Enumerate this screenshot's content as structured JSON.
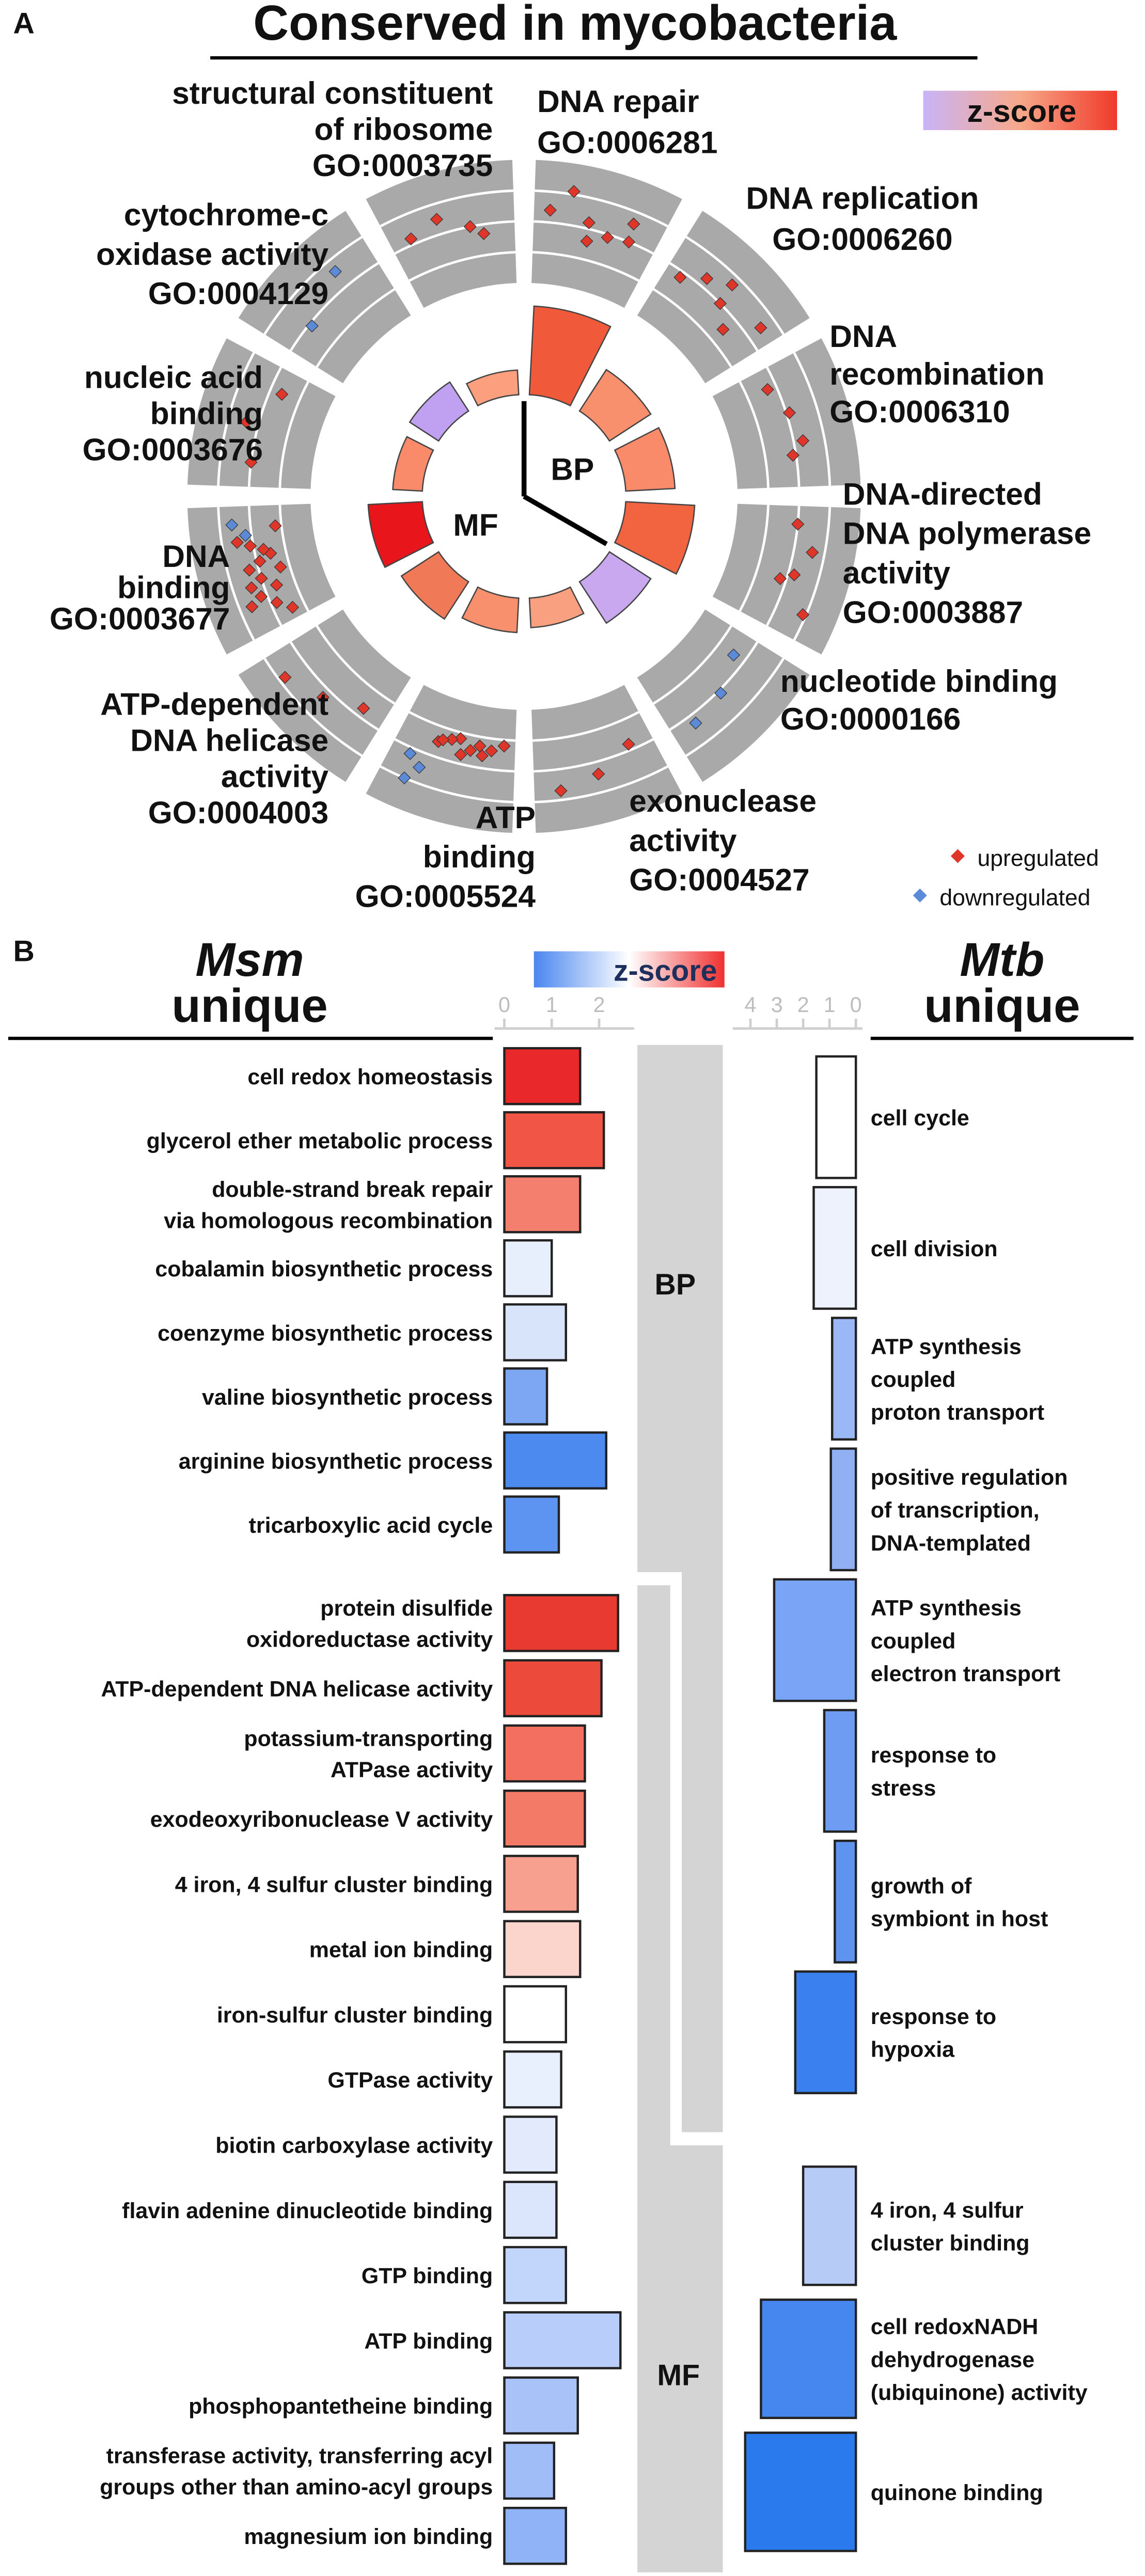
{
  "chart_data": [
    {
      "type": "radial",
      "panel": "A",
      "title": "Conserved in mycobacteria",
      "legend_title": "z-score",
      "colorscale": [
        "#c9b4f8",
        "#f7a88a",
        "#f03a2a"
      ],
      "categories": [
        [
          "DNA repair",
          "GO:0006281"
        ],
        [
          "DNA replication",
          "GO:0006260"
        ],
        [
          "DNA",
          "recombination",
          "GO:0006310"
        ],
        [
          "DNA-directed",
          "DNA polymerase",
          "activity",
          "GO:0003887"
        ],
        [
          "nucleotide binding",
          "GO:0000166"
        ],
        [
          "exonuclease",
          "activity",
          "GO:0004527"
        ],
        [
          "ATP",
          "binding",
          "GO:0005524"
        ],
        [
          "ATP-dependent",
          "DNA helicase",
          "activity",
          "GO:0004003"
        ],
        [
          "DNA",
          "binding",
          "GO:0003677"
        ],
        [
          "nucleic acid",
          "binding",
          "GO:0003676"
        ],
        [
          "cytochrome-c",
          "oxidase activity",
          "GO:0004129"
        ],
        [
          "structural constituent",
          "of ribosome",
          "GO:0003735"
        ]
      ],
      "ontology": [
        "BP",
        "BP",
        "BP",
        "BP",
        "MF",
        "MF",
        "MF",
        "MF",
        "MF",
        "MF",
        "MF",
        "MF"
      ],
      "values": [
        9,
        5,
        5,
        7,
        5,
        3,
        3.5,
        4.5,
        5.5,
        3,
        3.5,
        2.5
      ],
      "ylim": [
        0,
        10
      ],
      "colors": [
        "#f05a3a",
        "#f9906d",
        "#f98a6a",
        "#f26340",
        "#c9a8f0",
        "#f8a080",
        "#f9906d",
        "#f07a58",
        "#e8161b",
        "#f98a6a",
        "#c0a0f0",
        "#fb9f7e"
      ],
      "rlim": [
        0,
        4
      ],
      "points": [
        {
          "up": [
            2.4,
            3.1,
            2.2,
            1.6,
            1.9,
            2.6,
            2.0
          ],
          "down": []
        },
        {
          "up": [
            1.8,
            2.3,
            2.7,
            2.0,
            1.5,
            2.5
          ],
          "down": []
        },
        {
          "up": [
            1.7,
            2.1,
            2.3,
            1.9
          ],
          "down": []
        },
        {
          "up": [
            2.0,
            2.6,
            2.2,
            1.8,
            2.9
          ],
          "down": []
        },
        {
          "up": [],
          "down": [
            1.6,
            2.1,
            2.3
          ]
        },
        {
          "up": [
            1.8,
            2.4,
            2.7
          ],
          "down": []
        },
        {
          "up": [
            1.2,
            1.4,
            1.3,
            1.6,
            1.5,
            1.2,
            1.7,
            1.3,
            1.5,
            1.4
          ],
          "down": [
            2.5,
            2.2,
            3.0
          ]
        },
        {
          "up": [
            1.7,
            2.3,
            2.8
          ],
          "down": []
        },
        {
          "up": [
            1.4,
            1.8,
            2.2,
            2.6,
            1.6,
            2.0,
            2.4,
            1.3,
            1.9,
            2.3,
            1.5,
            2.1,
            1.7,
            2.5,
            1.2
          ],
          "down": [
            2.2,
            2.6
          ]
        },
        {
          "up": [
            2.0,
            2.4,
            1.6
          ],
          "down": []
        },
        {
          "up": [],
          "down": [
            1.9,
            2.6
          ]
        },
        {
          "up": [
            2.2,
            2.5,
            2.0,
            1.7
          ],
          "down": []
        }
      ],
      "up_label": "upregulated",
      "down_label": "downregulated",
      "up_color": "#e0362a",
      "down_color": "#5b8ad8"
    },
    {
      "type": "hbar",
      "panel": "B",
      "title": "Msm",
      "subtitle": "unique",
      "legend_title": "z-score",
      "colorscale": [
        "#4a86f0",
        "#ffffff",
        "#f03030"
      ],
      "categories": [
        [
          "cell redox homeostasis"
        ],
        [
          "glycerol ether metabolic process"
        ],
        [
          "double-strand break repair",
          "via homologous recombination"
        ],
        [
          "cobalamin biosynthetic process"
        ],
        [
          "coenzyme biosynthetic process"
        ],
        [
          "valine biosynthetic process"
        ],
        [
          "arginine biosynthetic process"
        ],
        [
          "tricarboxylic acid cycle"
        ],
        [
          "protein disulfide",
          "oxidoreductase activity"
        ],
        [
          "ATP-dependent DNA helicase activity"
        ],
        [
          "potassium-transporting",
          "ATPase activity"
        ],
        [
          "exodeoxyribonuclease V activity"
        ],
        [
          "4 iron, 4 sulfur cluster binding"
        ],
        [
          "metal ion binding"
        ],
        [
          "iron-sulfur cluster binding"
        ],
        [
          "GTPase activity"
        ],
        [
          "biotin carboxylase activity"
        ],
        [
          "flavin adenine dinucleotide binding"
        ],
        [
          "GTP binding"
        ],
        [
          "ATP binding"
        ],
        [
          "phosphopantetheine binding"
        ],
        [
          "transferase activity, transferring acyl",
          "groups other than amino-acyl groups"
        ],
        [
          "magnesium ion binding"
        ]
      ],
      "ontology": [
        "BP",
        "BP",
        "BP",
        "BP",
        "BP",
        "BP",
        "BP",
        "BP",
        "MF",
        "MF",
        "MF",
        "MF",
        "MF",
        "MF",
        "MF",
        "MF",
        "MF",
        "MF",
        "MF",
        "MF",
        "MF",
        "MF",
        "MF"
      ],
      "values": [
        1.6,
        2.1,
        1.6,
        1.0,
        1.3,
        0.9,
        2.15,
        1.15,
        2.4,
        2.05,
        1.7,
        1.7,
        1.55,
        1.6,
        1.3,
        1.2,
        1.1,
        1.1,
        1.3,
        2.45,
        1.55,
        1.05,
        1.3
      ],
      "colors": [
        "#e8282a",
        "#f05545",
        "#f47f6e",
        "#e8effc",
        "#d8e4fa",
        "#7da6f3",
        "#4d8af0",
        "#5e94f1",
        "#e83a30",
        "#ec4a3a",
        "#f37060",
        "#f47a68",
        "#f7a090",
        "#fbd4cc",
        "#ffffff",
        "#e8effd",
        "#e2eafc",
        "#dbe6fc",
        "#c2d5fa",
        "#b8cdf9",
        "#a9c3f8",
        "#a0bdf7",
        "#90b2f6"
      ],
      "xlim": [
        0,
        2.6
      ],
      "xticks": [
        0,
        1,
        2
      ]
    },
    {
      "type": "hbar",
      "title": "Mtb",
      "subtitle": "unique",
      "reversed": true,
      "categories": [
        [
          "cell cycle"
        ],
        [
          "cell division"
        ],
        [
          "ATP synthesis",
          "coupled",
          "proton transport"
        ],
        [
          "positive regulation",
          "of transcription,",
          "DNA-templated"
        ],
        [
          "ATP synthesis",
          "coupled",
          "electron transport"
        ],
        [
          "response to",
          "stress"
        ],
        [
          "growth of",
          "symbiont in host"
        ],
        [
          "response to",
          "hypoxia"
        ],
        [
          "4 iron, 4 sulfur",
          "cluster binding"
        ],
        [
          "cell redoxNADH",
          "dehydrogenase",
          "(ubiquinone) activity"
        ],
        [
          "quinone binding"
        ]
      ],
      "ontology": [
        "BP",
        "BP",
        "BP",
        "BP",
        "BP",
        "BP",
        "BP",
        "BP",
        "MF",
        "MF",
        "MF"
      ],
      "values": [
        1.5,
        1.6,
        0.9,
        0.95,
        3.1,
        1.2,
        0.8,
        2.3,
        2.0,
        3.6,
        4.2
      ],
      "colors": [
        "#ffffff",
        "#eef2fc",
        "#9ab8f5",
        "#90b0f3",
        "#7aa4f5",
        "#6e9cf2",
        "#5f93f0",
        "#3a80ee",
        "#b7cbf7",
        "#4586ef",
        "#2a7aee"
      ],
      "xlim": [
        0,
        4.3
      ],
      "xticks": [
        4,
        3,
        2,
        1,
        0
      ]
    }
  ]
}
